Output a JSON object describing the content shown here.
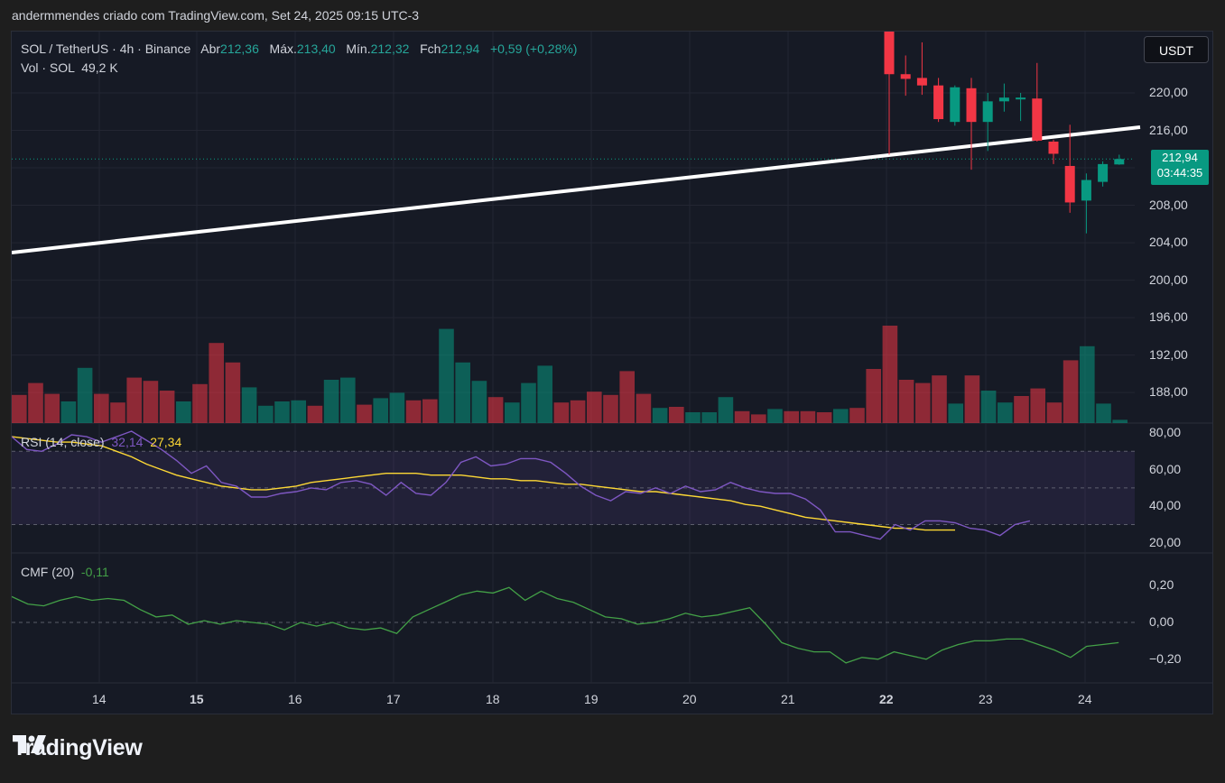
{
  "header": {
    "text": "andermmendes criado com TradingView.com, Set 24, 2025 09:15 UTC-3"
  },
  "legend": {
    "symbol": "SOL / TetherUS · 4h · Binance",
    "open_label": "Abr",
    "open": "212,36",
    "high_label": "Máx.",
    "high": "213,40",
    "low_label": "Mín.",
    "low": "212,32",
    "close_label": "Fch",
    "close": "212,94",
    "change": "+0,59 (+0,28%)"
  },
  "volume": {
    "label": "Vol · SOL",
    "value": "49,2 K"
  },
  "rsi": {
    "label": "RSI (14, close)",
    "value": "32,14",
    "ma_value": "27,34"
  },
  "cmf": {
    "label": "CMF (20)",
    "value": "-0,11"
  },
  "currency_button": "USDT",
  "last_price": {
    "value": "212,94",
    "countdown": "03:44:35"
  },
  "price_axis": [
    "220,00",
    "216,00",
    "212,00",
    "208,00",
    "204,00",
    "200,00",
    "196,00",
    "192,00",
    "188,00"
  ],
  "rsi_axis": [
    "80,00",
    "60,00",
    "40,00",
    "20,00"
  ],
  "cmf_axis": [
    "0,20",
    "0,00",
    "−0,20"
  ],
  "time_axis": [
    {
      "label": "14",
      "bold": false
    },
    {
      "label": "15",
      "bold": true
    },
    {
      "label": "16",
      "bold": false
    },
    {
      "label": "17",
      "bold": false
    },
    {
      "label": "18",
      "bold": false
    },
    {
      "label": "19",
      "bold": false
    },
    {
      "label": "20",
      "bold": false
    },
    {
      "label": "21",
      "bold": false
    },
    {
      "label": "22",
      "bold": true
    },
    {
      "label": "23",
      "bold": false
    },
    {
      "label": "24",
      "bold": false
    }
  ],
  "brand": {
    "name": "TradingView"
  },
  "colors": {
    "up": "#089981",
    "down": "#f23645",
    "rsi": "#7e57c2",
    "rsi_ma": "#fdd835",
    "cmf": "#43a047",
    "background": "#161a25"
  },
  "chart_data": {
    "type": "candlestick",
    "candles": [
      {
        "o": 229.6,
        "h": 230.4,
        "l": 213.4,
        "c": 222.0
      },
      {
        "o": 222.0,
        "h": 224.0,
        "l": 219.7,
        "c": 221.5
      },
      {
        "o": 221.6,
        "h": 225.4,
        "l": 219.8,
        "c": 220.8
      },
      {
        "o": 220.8,
        "h": 221.6,
        "l": 216.9,
        "c": 217.2
      },
      {
        "o": 216.9,
        "h": 220.8,
        "l": 216.5,
        "c": 220.6
      },
      {
        "o": 220.5,
        "h": 221.6,
        "l": 211.8,
        "c": 216.9
      },
      {
        "o": 216.9,
        "h": 220.0,
        "l": 213.8,
        "c": 219.1
      },
      {
        "o": 219.1,
        "h": 221.0,
        "l": 218.0,
        "c": 219.5
      },
      {
        "o": 219.5,
        "h": 220.0,
        "l": 217.0,
        "c": 219.5
      },
      {
        "o": 219.4,
        "h": 223.2,
        "l": 214.8,
        "c": 214.9
      },
      {
        "o": 214.8,
        "h": 215.0,
        "l": 212.4,
        "c": 213.5
      },
      {
        "o": 212.2,
        "h": 216.6,
        "l": 207.2,
        "c": 208.3
      },
      {
        "o": 208.5,
        "h": 211.4,
        "l": 205.0,
        "c": 210.7
      },
      {
        "o": 210.5,
        "h": 212.7,
        "l": 210.0,
        "c": 212.4
      },
      {
        "o": 212.36,
        "h": 213.4,
        "l": 212.32,
        "c": 212.94
      }
    ],
    "volume": [
      {
        "v": 26,
        "up": false
      },
      {
        "v": 37,
        "up": false
      },
      {
        "v": 27,
        "up": false
      },
      {
        "v": 20,
        "up": true
      },
      {
        "v": 51,
        "up": true
      },
      {
        "v": 27,
        "up": false
      },
      {
        "v": 19,
        "up": false
      },
      {
        "v": 42,
        "up": false
      },
      {
        "v": 39,
        "up": false
      },
      {
        "v": 30,
        "up": false
      },
      {
        "v": 20,
        "up": true
      },
      {
        "v": 36,
        "up": false
      },
      {
        "v": 74,
        "up": false
      },
      {
        "v": 56,
        "up": false
      },
      {
        "v": 33,
        "up": true
      },
      {
        "v": 16,
        "up": true
      },
      {
        "v": 20,
        "up": true
      },
      {
        "v": 21,
        "up": true
      },
      {
        "v": 16,
        "up": false
      },
      {
        "v": 40,
        "up": true
      },
      {
        "v": 42,
        "up": true
      },
      {
        "v": 17,
        "up": false
      },
      {
        "v": 23,
        "up": true
      },
      {
        "v": 28,
        "up": true
      },
      {
        "v": 21,
        "up": false
      },
      {
        "v": 22,
        "up": false
      },
      {
        "v": 87,
        "up": true
      },
      {
        "v": 56,
        "up": true
      },
      {
        "v": 39,
        "up": true
      },
      {
        "v": 24,
        "up": false
      },
      {
        "v": 19,
        "up": true
      },
      {
        "v": 37,
        "up": true
      },
      {
        "v": 53,
        "up": true
      },
      {
        "v": 19,
        "up": false
      },
      {
        "v": 21,
        "up": false
      },
      {
        "v": 29,
        "up": false
      },
      {
        "v": 26,
        "up": false
      },
      {
        "v": 48,
        "up": false
      },
      {
        "v": 27,
        "up": false
      },
      {
        "v": 14,
        "up": true
      },
      {
        "v": 15,
        "up": false
      },
      {
        "v": 10,
        "up": true
      },
      {
        "v": 10,
        "up": true
      },
      {
        "v": 24,
        "up": true
      },
      {
        "v": 11,
        "up": false
      },
      {
        "v": 8,
        "up": false
      },
      {
        "v": 13,
        "up": true
      },
      {
        "v": 11,
        "up": false
      },
      {
        "v": 11,
        "up": false
      },
      {
        "v": 10,
        "up": false
      },
      {
        "v": 13,
        "up": true
      },
      {
        "v": 14,
        "up": false
      },
      {
        "v": 50,
        "up": false
      },
      {
        "v": 90,
        "up": false
      },
      {
        "v": 40,
        "up": false
      },
      {
        "v": 37,
        "up": false
      },
      {
        "v": 44,
        "up": false
      },
      {
        "v": 18,
        "up": true
      },
      {
        "v": 44,
        "up": false
      },
      {
        "v": 30,
        "up": true
      },
      {
        "v": 19,
        "up": true
      },
      {
        "v": 25,
        "up": false
      },
      {
        "v": 32,
        "up": false
      },
      {
        "v": 19,
        "up": false
      },
      {
        "v": 58,
        "up": false
      },
      {
        "v": 71,
        "up": true
      },
      {
        "v": 18,
        "up": true
      },
      {
        "v": 3,
        "up": true
      }
    ],
    "rsi": [
      78,
      71,
      70,
      74,
      79,
      78,
      75,
      78,
      81,
      76,
      71,
      65,
      58,
      62,
      53,
      51,
      45,
      45,
      47,
      48,
      50,
      49,
      53,
      54,
      52,
      46,
      53,
      47,
      46,
      53,
      64,
      67,
      62,
      63,
      66,
      66,
      64,
      58,
      51,
      46,
      43,
      48,
      47,
      50,
      47,
      51,
      48,
      49,
      53,
      50,
      48,
      47,
      47,
      44,
      38,
      26,
      26,
      24,
      22,
      30,
      27,
      32,
      32,
      31,
      28,
      27,
      24,
      30,
      32
    ],
    "rsi_ma": [
      78,
      77,
      76,
      75,
      75,
      74,
      73,
      70,
      67,
      63,
      60,
      57,
      55,
      53,
      51,
      50,
      49,
      49,
      50,
      51,
      53,
      54,
      55,
      56,
      57,
      58,
      58,
      58,
      57,
      57,
      57,
      56,
      55,
      55,
      54,
      54,
      53,
      52,
      52,
      51,
      50,
      49,
      48,
      48,
      47,
      46,
      45,
      44,
      43,
      41,
      40,
      38,
      36,
      34,
      33,
      32,
      31,
      30,
      29,
      28,
      28,
      27,
      27,
      27
    ],
    "cmf": [
      0.14,
      0.1,
      0.09,
      0.12,
      0.14,
      0.12,
      0.13,
      0.12,
      0.07,
      0.03,
      0.04,
      -0.01,
      0.01,
      -0.01,
      0.01,
      0.0,
      -0.01,
      -0.04,
      0.0,
      -0.02,
      0.0,
      -0.03,
      -0.04,
      -0.03,
      -0.06,
      0.03,
      0.07,
      0.11,
      0.15,
      0.17,
      0.16,
      0.19,
      0.12,
      0.17,
      0.13,
      0.11,
      0.07,
      0.03,
      0.02,
      -0.01,
      0.0,
      0.02,
      0.05,
      0.03,
      0.04,
      0.06,
      0.08,
      -0.01,
      -0.11,
      -0.14,
      -0.16,
      -0.16,
      -0.22,
      -0.19,
      -0.2,
      -0.16,
      -0.18,
      -0.2,
      -0.15,
      -0.12,
      -0.1,
      -0.1,
      -0.09,
      -0.09,
      -0.12,
      -0.15,
      -0.19,
      -0.13,
      -0.12,
      -0.11
    ]
  }
}
